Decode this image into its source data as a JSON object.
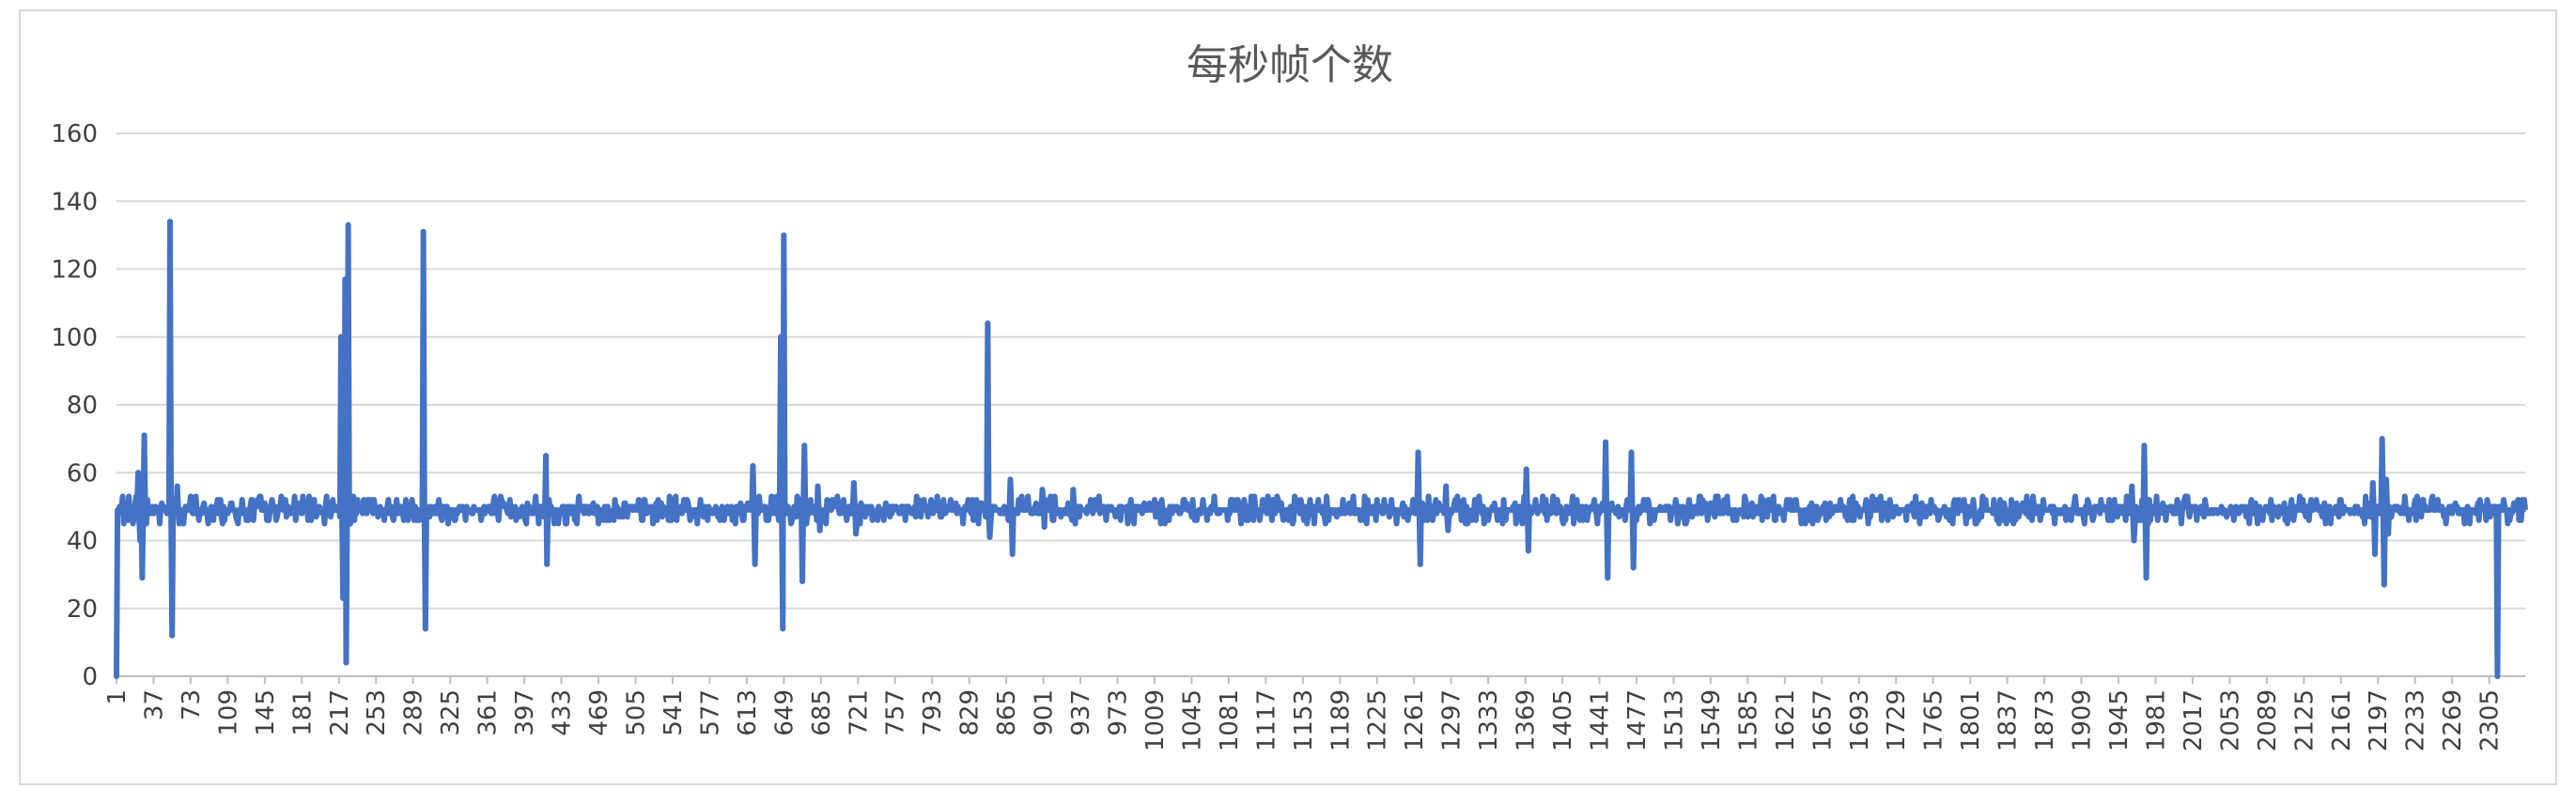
{
  "chart_data": {
    "type": "line",
    "title": "每秒帧个数",
    "xlabel": "",
    "ylabel": "",
    "ylim": [
      0,
      160
    ],
    "yticks": [
      "0",
      "20",
      "40",
      "60",
      "80",
      "100",
      "120",
      "140",
      "160"
    ],
    "xlim": [
      1,
      2340
    ],
    "xticks": [
      "1",
      "37",
      "73",
      "109",
      "145",
      "181",
      "217",
      "253",
      "289",
      "325",
      "361",
      "397",
      "433",
      "469",
      "505",
      "541",
      "577",
      "613",
      "649",
      "685",
      "721",
      "757",
      "793",
      "829",
      "865",
      "901",
      "937",
      "973",
      "1009",
      "1045",
      "1081",
      "1117",
      "1153",
      "1189",
      "1225",
      "1261",
      "1297",
      "1333",
      "1369",
      "1405",
      "1441",
      "1477",
      "1513",
      "1549",
      "1585",
      "1621",
      "1657",
      "1693",
      "1729",
      "1765",
      "1801",
      "1837",
      "1873",
      "1909",
      "1945",
      "1981",
      "2017",
      "2053",
      "2089",
      "2125",
      "2161",
      "2197",
      "2233",
      "2269",
      "2305"
    ],
    "grid": true,
    "legend": "none",
    "baseline": 49,
    "series": [
      {
        "color": "#4472C4",
        "spikes": [
          {
            "x": 1,
            "y": 0
          },
          {
            "x": 3,
            "y": 48
          },
          {
            "x": 6,
            "y": 50
          },
          {
            "x": 22,
            "y": 60
          },
          {
            "x": 24,
            "y": 40
          },
          {
            "x": 26,
            "y": 29
          },
          {
            "x": 28,
            "y": 71
          },
          {
            "x": 30,
            "y": 45
          },
          {
            "x": 53,
            "y": 134
          },
          {
            "x": 55,
            "y": 12
          },
          {
            "x": 60,
            "y": 56
          },
          {
            "x": 62,
            "y": 45
          },
          {
            "x": 219,
            "y": 100
          },
          {
            "x": 221,
            "y": 23
          },
          {
            "x": 223,
            "y": 117
          },
          {
            "x": 224,
            "y": 4
          },
          {
            "x": 226,
            "y": 133
          },
          {
            "x": 228,
            "y": 45
          },
          {
            "x": 299,
            "y": 131
          },
          {
            "x": 301,
            "y": 14
          },
          {
            "x": 418,
            "y": 65
          },
          {
            "x": 419,
            "y": 33
          },
          {
            "x": 619,
            "y": 62
          },
          {
            "x": 621,
            "y": 33
          },
          {
            "x": 646,
            "y": 100
          },
          {
            "x": 648,
            "y": 14
          },
          {
            "x": 649,
            "y": 130
          },
          {
            "x": 651,
            "y": 48
          },
          {
            "x": 667,
            "y": 28
          },
          {
            "x": 669,
            "y": 68
          },
          {
            "x": 671,
            "y": 45
          },
          {
            "x": 682,
            "y": 56
          },
          {
            "x": 684,
            "y": 43
          },
          {
            "x": 717,
            "y": 57
          },
          {
            "x": 719,
            "y": 42
          },
          {
            "x": 847,
            "y": 104
          },
          {
            "x": 849,
            "y": 41
          },
          {
            "x": 869,
            "y": 58
          },
          {
            "x": 871,
            "y": 36
          },
          {
            "x": 900,
            "y": 55
          },
          {
            "x": 902,
            "y": 44
          },
          {
            "x": 930,
            "y": 55
          },
          {
            "x": 932,
            "y": 45
          },
          {
            "x": 1265,
            "y": 66
          },
          {
            "x": 1267,
            "y": 33
          },
          {
            "x": 1292,
            "y": 56
          },
          {
            "x": 1294,
            "y": 43
          },
          {
            "x": 1370,
            "y": 61
          },
          {
            "x": 1372,
            "y": 37
          },
          {
            "x": 1447,
            "y": 69
          },
          {
            "x": 1449,
            "y": 29
          },
          {
            "x": 1472,
            "y": 66
          },
          {
            "x": 1474,
            "y": 32
          },
          {
            "x": 1958,
            "y": 56
          },
          {
            "x": 1960,
            "y": 40
          },
          {
            "x": 1970,
            "y": 68
          },
          {
            "x": 1972,
            "y": 29
          },
          {
            "x": 2192,
            "y": 57
          },
          {
            "x": 2194,
            "y": 36
          },
          {
            "x": 2201,
            "y": 70
          },
          {
            "x": 2203,
            "y": 27
          },
          {
            "x": 2205,
            "y": 58
          },
          {
            "x": 2207,
            "y": 42
          },
          {
            "x": 2311,
            "y": 50
          },
          {
            "x": 2313,
            "y": 0
          },
          {
            "x": 2315,
            "y": 50
          }
        ]
      }
    ]
  }
}
